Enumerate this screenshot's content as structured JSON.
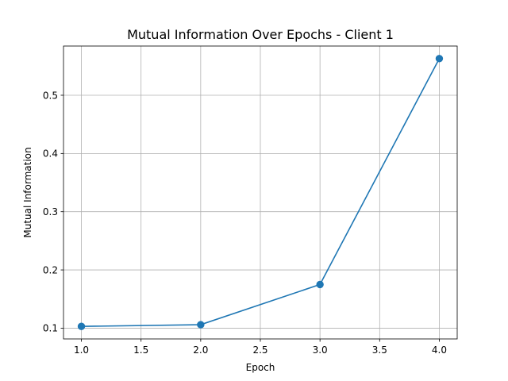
{
  "chart_data": {
    "type": "line",
    "title": "Mutual Information Over Epochs - Client 1",
    "xlabel": "Epoch",
    "ylabel": "Mutual Information",
    "xlim": [
      0.85,
      4.15
    ],
    "ylim": [
      0.0815,
      0.5845
    ],
    "xticks": [
      1.0,
      1.5,
      2.0,
      2.5,
      3.0,
      3.5,
      4.0
    ],
    "xtick_labels": [
      "1.0",
      "1.5",
      "2.0",
      "2.5",
      "3.0",
      "3.5",
      "4.0"
    ],
    "yticks": [
      0.1,
      0.2,
      0.3,
      0.4,
      0.5
    ],
    "ytick_labels": [
      "0.1",
      "0.2",
      "0.3",
      "0.4",
      "0.5"
    ],
    "grid": true,
    "series": [
      {
        "color": "#1f77b4",
        "marker": "circle",
        "x": [
          1.0,
          2.0,
          3.0,
          4.0
        ],
        "y": [
          0.103,
          0.106,
          0.175,
          0.563
        ]
      }
    ]
  }
}
